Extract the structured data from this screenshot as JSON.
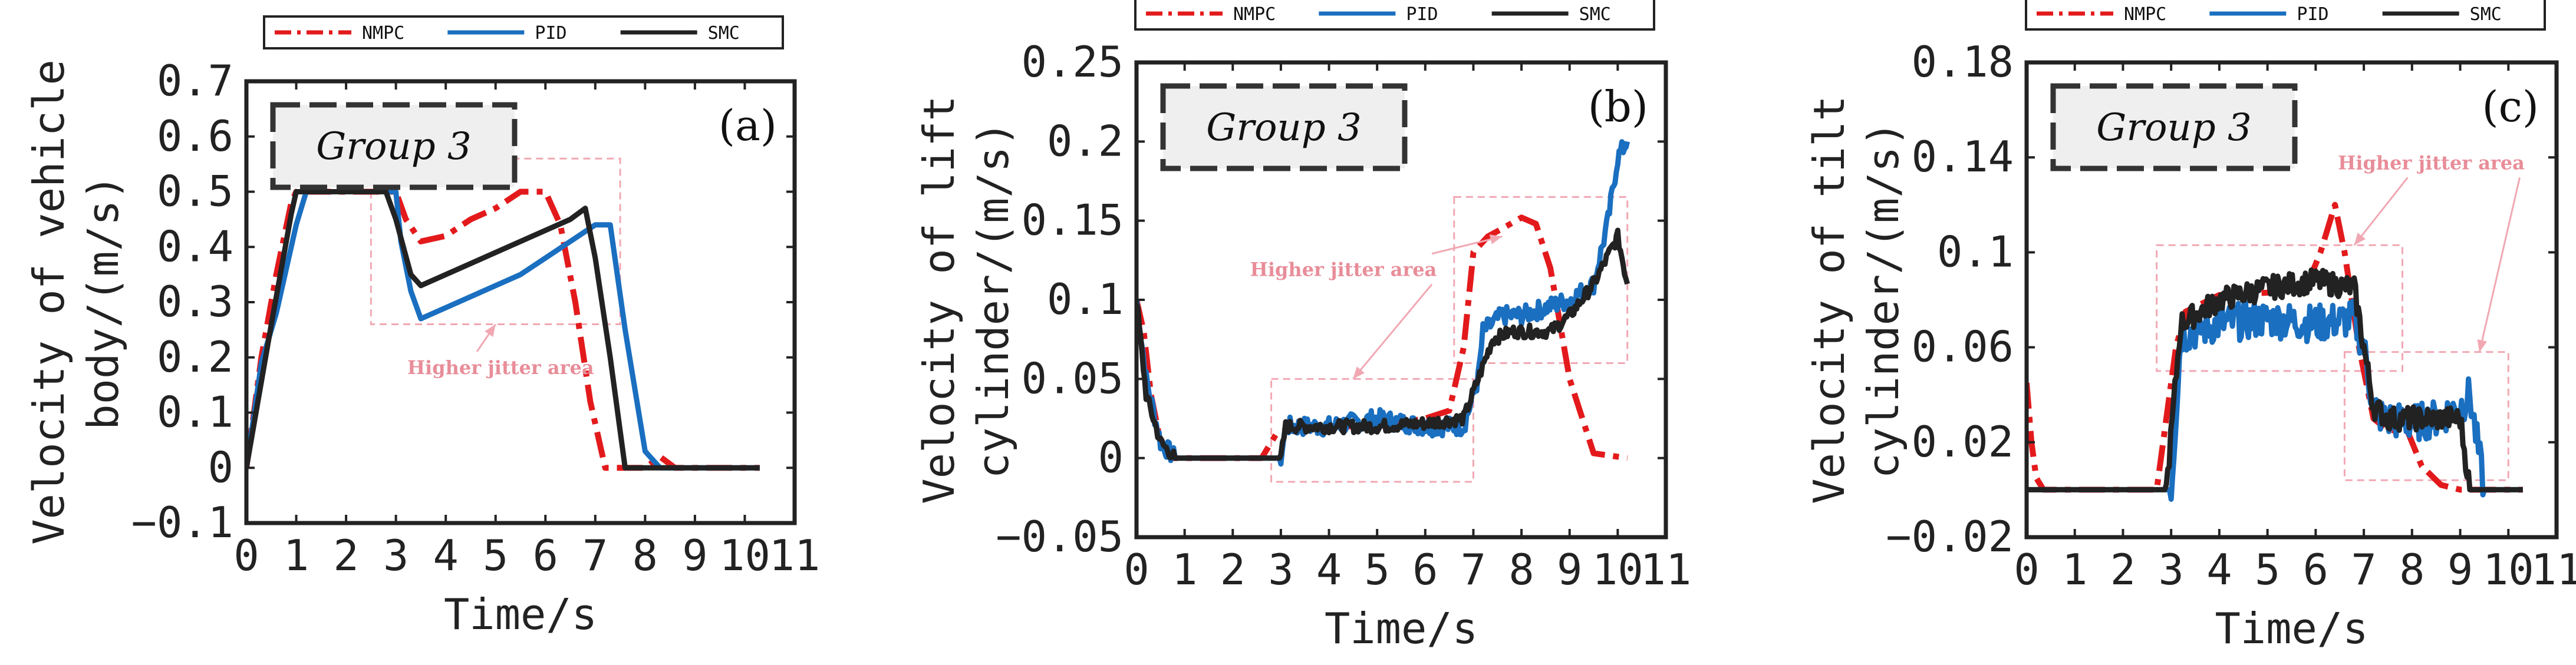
{
  "chart_data": [
    {
      "type": "line",
      "panel": "(a)",
      "group_label": "Group 3",
      "xlabel": "Time/s",
      "ylabel": "Velocity of vehicle body/(m/s)",
      "ylabel_lines": [
        "Velocity of vehicle",
        "body/(m/s)"
      ],
      "xlim": [
        0,
        11
      ],
      "ylim": [
        -0.1,
        0.7
      ],
      "xticks": [
        0,
        1,
        2,
        3,
        4,
        5,
        6,
        7,
        8,
        9,
        10,
        11
      ],
      "yticks": [
        -0.1,
        0,
        0.1,
        0.2,
        0.3,
        0.4,
        0.5,
        0.6,
        0.7
      ],
      "xtick_labels": [
        "0",
        "1",
        "2",
        "3",
        "4",
        "5",
        "6",
        "7",
        "8",
        "9",
        "10",
        "11"
      ],
      "ytick_labels": [
        "−0.1",
        "0",
        "0.1",
        "0.2",
        "0.3",
        "0.4",
        "0.5",
        "0.6",
        "0.7"
      ],
      "legend": [
        "NMPC",
        "PID",
        "SMC"
      ],
      "annotation": "Higher jitter area",
      "annotation_boxes": [
        {
          "x": [
            2.5,
            7.5
          ],
          "y": [
            0.26,
            0.56
          ]
        }
      ],
      "series": [
        {
          "name": "NMPC",
          "color": "#e31a1c",
          "dash": "dashdot",
          "x": [
            0,
            0.3,
            0.6,
            0.9,
            1.0,
            3.0,
            3.2,
            3.5,
            4.0,
            4.5,
            5.0,
            5.5,
            6.0,
            6.3,
            6.6,
            6.9,
            7.2,
            7.6,
            8.0,
            8.3,
            8.6,
            10.3
          ],
          "y": [
            0,
            0.2,
            0.35,
            0.48,
            0.5,
            0.5,
            0.45,
            0.41,
            0.42,
            0.45,
            0.47,
            0.5,
            0.5,
            0.44,
            0.3,
            0.12,
            0.0,
            0.0,
            0.0,
            0.02,
            0.0,
            0.0
          ]
        },
        {
          "name": "PID",
          "color": "#1a6fc0",
          "dash": "solid",
          "x": [
            0,
            0.3,
            0.6,
            1.0,
            1.2,
            3.0,
            3.1,
            3.3,
            3.5,
            4.0,
            4.5,
            5.0,
            5.5,
            6.0,
            6.5,
            7.0,
            7.3,
            7.6,
            8.0,
            8.3,
            10.3
          ],
          "y": [
            0,
            0.19,
            0.28,
            0.44,
            0.5,
            0.5,
            0.41,
            0.32,
            0.27,
            0.29,
            0.31,
            0.33,
            0.35,
            0.38,
            0.41,
            0.44,
            0.44,
            0.25,
            0.03,
            0.0,
            0.0
          ]
        },
        {
          "name": "SMC",
          "color": "#222222",
          "dash": "solid",
          "x": [
            0,
            0.5,
            0.9,
            1.0,
            2.8,
            3.0,
            3.3,
            3.5,
            4.0,
            4.5,
            5.0,
            5.5,
            6.0,
            6.5,
            6.8,
            7.0,
            7.3,
            7.6,
            10.3
          ],
          "y": [
            0,
            0.26,
            0.46,
            0.5,
            0.5,
            0.45,
            0.35,
            0.33,
            0.35,
            0.37,
            0.39,
            0.41,
            0.43,
            0.45,
            0.47,
            0.38,
            0.2,
            0.0,
            0.0
          ]
        }
      ]
    },
    {
      "type": "line",
      "panel": "(b)",
      "group_label": "Group 3",
      "xlabel": "Time/s",
      "ylabel": "Velocity of lift cylinder/(m/s)",
      "ylabel_lines": [
        "Velocity of lift",
        "cylinder/(m/s)"
      ],
      "xlim": [
        0,
        11
      ],
      "ylim": [
        -0.05,
        0.25
      ],
      "xticks": [
        0,
        1,
        2,
        3,
        4,
        5,
        6,
        7,
        8,
        9,
        10,
        11
      ],
      "yticks": [
        -0.05,
        0,
        0.05,
        0.1,
        0.15,
        0.2,
        0.25
      ],
      "xtick_labels": [
        "0",
        "1",
        "2",
        "3",
        "4",
        "5",
        "6",
        "7",
        "8",
        "9",
        "10",
        "11"
      ],
      "ytick_labels": [
        "−0.05",
        "0",
        "0.05",
        "0.1",
        "0.15",
        "0.2",
        "0.25"
      ],
      "legend": [
        "NMPC",
        "PID",
        "SMC"
      ],
      "annotation": "Higher jitter area",
      "annotation_boxes": [
        {
          "x": [
            2.8,
            7.0
          ],
          "y": [
            -0.015,
            0.05
          ]
        },
        {
          "x": [
            6.6,
            10.2
          ],
          "y": [
            0.06,
            0.165
          ]
        }
      ],
      "series": [
        {
          "name": "NMPC",
          "color": "#e31a1c",
          "dash": "dashdot",
          "x": [
            0,
            0.15,
            0.3,
            0.5,
            0.7,
            1.0,
            2.6,
            2.9,
            3.3,
            4.0,
            5.0,
            6.0,
            6.5,
            6.8,
            7.0,
            7.3,
            7.6,
            8.0,
            8.3,
            8.6,
            9.0,
            9.5,
            10.2
          ],
          "y": [
            0.1,
            0.08,
            0.04,
            0.01,
            0.0,
            0.0,
            0.0,
            0.015,
            0.02,
            0.02,
            0.02,
            0.025,
            0.03,
            0.07,
            0.13,
            0.14,
            0.145,
            0.152,
            0.148,
            0.12,
            0.05,
            0.003,
            0.0
          ]
        },
        {
          "name": "PID",
          "color": "#1a6fc0",
          "dash": "solid",
          "jitter": 0.006,
          "x": [
            0,
            0.2,
            0.5,
            0.8,
            1.0,
            3.0,
            3.1,
            4.0,
            5.0,
            6.0,
            6.8,
            7.1,
            7.2,
            7.6,
            8.0,
            8.5,
            9.0,
            9.5,
            9.8,
            10.0,
            10.2
          ],
          "y": [
            0.1,
            0.05,
            0.01,
            0.0,
            0.0,
            0.0,
            0.02,
            0.02,
            0.025,
            0.02,
            0.02,
            0.05,
            0.08,
            0.09,
            0.09,
            0.095,
            0.1,
            0.11,
            0.15,
            0.19,
            0.2
          ]
        },
        {
          "name": "SMC",
          "color": "#222222",
          "dash": "solid",
          "jitter": 0.004,
          "x": [
            0,
            0.2,
            0.5,
            0.8,
            1.0,
            3.0,
            3.1,
            4.0,
            5.0,
            6.0,
            6.8,
            7.1,
            7.4,
            7.8,
            8.2,
            8.6,
            9.0,
            9.5,
            10.0,
            10.2
          ],
          "y": [
            0.1,
            0.04,
            0.01,
            0.0,
            0.0,
            0.0,
            0.02,
            0.02,
            0.02,
            0.022,
            0.025,
            0.05,
            0.075,
            0.08,
            0.08,
            0.08,
            0.09,
            0.11,
            0.14,
            0.11
          ]
        }
      ]
    },
    {
      "type": "line",
      "panel": "(c)",
      "group_label": "Group 3",
      "xlabel": "Time/s",
      "ylabel": "Velocity of tilt cylinder/(m/s)",
      "ylabel_lines": [
        "Velocity of tilt",
        "cylinder/(m/s)"
      ],
      "xlim": [
        0,
        11
      ],
      "ylim": [
        -0.02,
        0.18
      ],
      "xticks": [
        0,
        1,
        2,
        3,
        4,
        5,
        6,
        7,
        8,
        9,
        10,
        11
      ],
      "yticks": [
        -0.02,
        0.02,
        0.06,
        0.1,
        0.14,
        0.18
      ],
      "xtick_labels": [
        "0",
        "1",
        "2",
        "3",
        "4",
        "5",
        "6",
        "7",
        "8",
        "9",
        "10",
        "11"
      ],
      "ytick_labels": [
        "−0.02",
        "0.02",
        "0.06",
        "0.1",
        "0.14",
        "0.18"
      ],
      "legend": [
        "NMPC",
        "PID",
        "SMC"
      ],
      "annotation": "Higher jitter area",
      "annotation_boxes": [
        {
          "x": [
            2.7,
            7.8
          ],
          "y": [
            0.05,
            0.103
          ]
        },
        {
          "x": [
            6.6,
            10.0
          ],
          "y": [
            0.004,
            0.058
          ]
        }
      ],
      "series": [
        {
          "name": "NMPC",
          "color": "#e31a1c",
          "dash": "dashdot",
          "x": [
            0,
            0.1,
            0.2,
            0.35,
            2.7,
            2.9,
            3.1,
            3.3,
            4.0,
            5.0,
            5.8,
            6.1,
            6.4,
            6.6,
            6.9,
            7.2,
            7.5,
            7.9,
            8.2,
            8.6,
            9.0,
            10.3
          ],
          "y": [
            0.045,
            0.02,
            0.005,
            0.0,
            0.0,
            0.03,
            0.06,
            0.075,
            0.082,
            0.083,
            0.085,
            0.1,
            0.12,
            0.1,
            0.06,
            0.03,
            0.025,
            0.025,
            0.01,
            0.002,
            0.0,
            0.0
          ]
        },
        {
          "name": "PID",
          "color": "#1a6fc0",
          "dash": "solid",
          "jitter": 0.008,
          "x": [
            0,
            2.9,
            3.0,
            3.2,
            4.0,
            5.0,
            6.0,
            6.8,
            7.0,
            7.2,
            7.4,
            8.0,
            8.5,
            9.0,
            9.2,
            9.5,
            10.3
          ],
          "y": [
            0.0,
            0.0,
            0.0,
            0.065,
            0.07,
            0.072,
            0.07,
            0.072,
            0.06,
            0.035,
            0.03,
            0.028,
            0.03,
            0.035,
            0.04,
            0.0,
            0.0
          ]
        },
        {
          "name": "SMC",
          "color": "#222222",
          "dash": "solid",
          "jitter": 0.005,
          "x": [
            0,
            2.8,
            2.9,
            3.2,
            4.0,
            5.0,
            6.0,
            6.8,
            7.0,
            7.2,
            7.5,
            8.0,
            8.5,
            9.0,
            9.2,
            10.3
          ],
          "y": [
            0.0,
            0.0,
            0.0,
            0.07,
            0.08,
            0.085,
            0.088,
            0.085,
            0.06,
            0.035,
            0.03,
            0.03,
            0.03,
            0.03,
            0.0,
            0.0
          ]
        }
      ]
    }
  ]
}
